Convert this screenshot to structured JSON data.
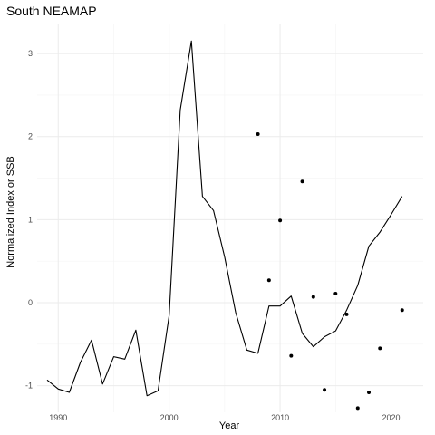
{
  "chart_data": {
    "type": "line",
    "title": "South NEAMAP",
    "xlabel": "Year",
    "ylabel": "Normalized Index or SSB",
    "xlim": [
      1988.1,
      2022.9
    ],
    "ylim": [
      -1.32,
      3.35
    ],
    "x_ticks": [
      1990,
      2000,
      2010,
      2020
    ],
    "y_ticks": [
      -1,
      0,
      1,
      2,
      3
    ],
    "grid": true,
    "series": [
      {
        "type": "line",
        "color": "#000000",
        "x": [
          1989,
          1990,
          1991,
          1992,
          1993,
          1994,
          1995,
          1996,
          1997,
          1998,
          1999,
          2000,
          2001,
          2002,
          2003,
          2004,
          2005,
          2006,
          2007,
          2008,
          2009,
          2010,
          2011,
          2012,
          2013,
          2014,
          2015,
          2016,
          2017,
          2018,
          2019,
          2020,
          2021
        ],
        "values": [
          -0.93,
          -1.04,
          -1.08,
          -0.72,
          -0.45,
          -0.98,
          -0.65,
          -0.68,
          -0.33,
          -1.12,
          -1.06,
          -0.15,
          2.32,
          3.15,
          1.28,
          1.11,
          0.55,
          -0.12,
          -0.57,
          -0.61,
          -0.04,
          -0.04,
          0.08,
          -0.37,
          -0.53,
          -0.41,
          -0.34,
          -0.09,
          0.21,
          0.68,
          0.85,
          1.06,
          1.28
        ]
      },
      {
        "type": "scatter",
        "color": "#000000",
        "x": [
          2008,
          2009,
          2010,
          2011,
          2012,
          2013,
          2014,
          2015,
          2016,
          2017,
          2018,
          2019,
          2021
        ],
        "values": [
          2.03,
          0.27,
          0.99,
          -0.64,
          1.46,
          0.07,
          -1.05,
          0.11,
          -0.14,
          -1.27,
          -1.08,
          -0.55,
          -0.09
        ]
      }
    ]
  }
}
